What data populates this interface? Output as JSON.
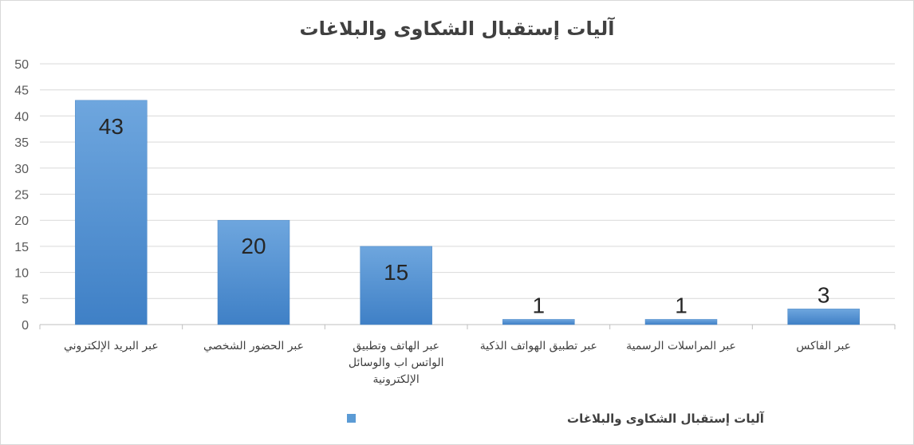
{
  "chart_data": {
    "type": "bar",
    "title": "آليات إستقبال الشكاوى والبلاغات",
    "xlabel": "",
    "ylabel": "",
    "ylim": [
      0,
      50
    ],
    "yticks": [
      "0",
      "5",
      "10",
      "15",
      "20",
      "25",
      "30",
      "35",
      "40",
      "45",
      "50"
    ],
    "grid": true,
    "legend_position": "bottom",
    "categories": [
      [
        "عبر البريد الإلكتروني"
      ],
      [
        "عبر الحضور الشخصي"
      ],
      [
        "عبر الهاتف وتطبيق",
        "الواتس اب والوسائل",
        "الإلكترونية"
      ],
      [
        "عبر تطبيق الهواتف الذكية"
      ],
      [
        "عبر المراسلات الرسمية"
      ],
      [
        "عبر الفاكس"
      ]
    ],
    "series": [
      {
        "name": "آليات إستقبال الشكاوى والبلاغات",
        "values": [
          43,
          20,
          15,
          1,
          1,
          3
        ],
        "data_labels": [
          "43",
          "20",
          "15",
          "1",
          "1",
          "3"
        ],
        "color": "#5b9bd5"
      }
    ]
  }
}
